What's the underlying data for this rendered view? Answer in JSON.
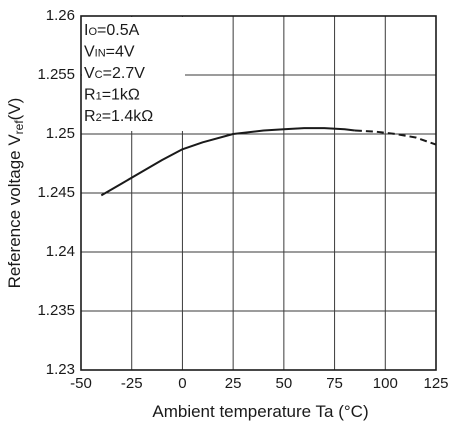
{
  "chart_data": {
    "type": "line",
    "xlabel": "Ambient temperature Ta (°C)",
    "ylabel_main": "Reference voltage V",
    "ylabel_sub": "ref",
    "ylabel_unit": "(V)",
    "xlim": [
      -50,
      125
    ],
    "ylim": [
      1.23,
      1.26
    ],
    "x_ticks": [
      -50,
      -25,
      0,
      25,
      50,
      75,
      100,
      125
    ],
    "x_tick_labels": [
      "-50",
      "-25",
      "0",
      "25",
      "50",
      "75",
      "100",
      "125"
    ],
    "y_ticks": [
      1.23,
      1.235,
      1.24,
      1.245,
      1.25,
      1.255,
      1.26
    ],
    "y_tick_labels": [
      "1.23",
      "1.235",
      "1.24",
      "1.245",
      "1.25",
      "1.255",
      "1.26"
    ],
    "grid": true,
    "conditions": [
      {
        "main": "I",
        "sub": "O",
        "rest": "=0.5A"
      },
      {
        "main": "V",
        "sub": "IN",
        "rest": "=4V"
      },
      {
        "main": "V",
        "sub": "C",
        "rest": "=2.7V"
      },
      {
        "main": "R",
        "sub": "1",
        "rest": "=1kΩ"
      },
      {
        "main": "R",
        "sub": "2",
        "rest": "=1.4kΩ"
      }
    ],
    "series": [
      {
        "style": "solid",
        "color": "#1a1a1a",
        "x": [
          -40,
          -30,
          -20,
          -10,
          0,
          10,
          25,
          40,
          50,
          60,
          70,
          80,
          85
        ],
        "y": [
          1.2448,
          1.2458,
          1.2468,
          1.2478,
          1.2487,
          1.2493,
          1.25,
          1.2503,
          1.2504,
          1.2505,
          1.2505,
          1.2504,
          1.2503
        ]
      },
      {
        "style": "dashed",
        "color": "#1a1a1a",
        "x": [
          85,
          95,
          105,
          115,
          125
        ],
        "y": [
          1.2503,
          1.2502,
          1.25,
          1.2497,
          1.2491
        ]
      }
    ]
  }
}
